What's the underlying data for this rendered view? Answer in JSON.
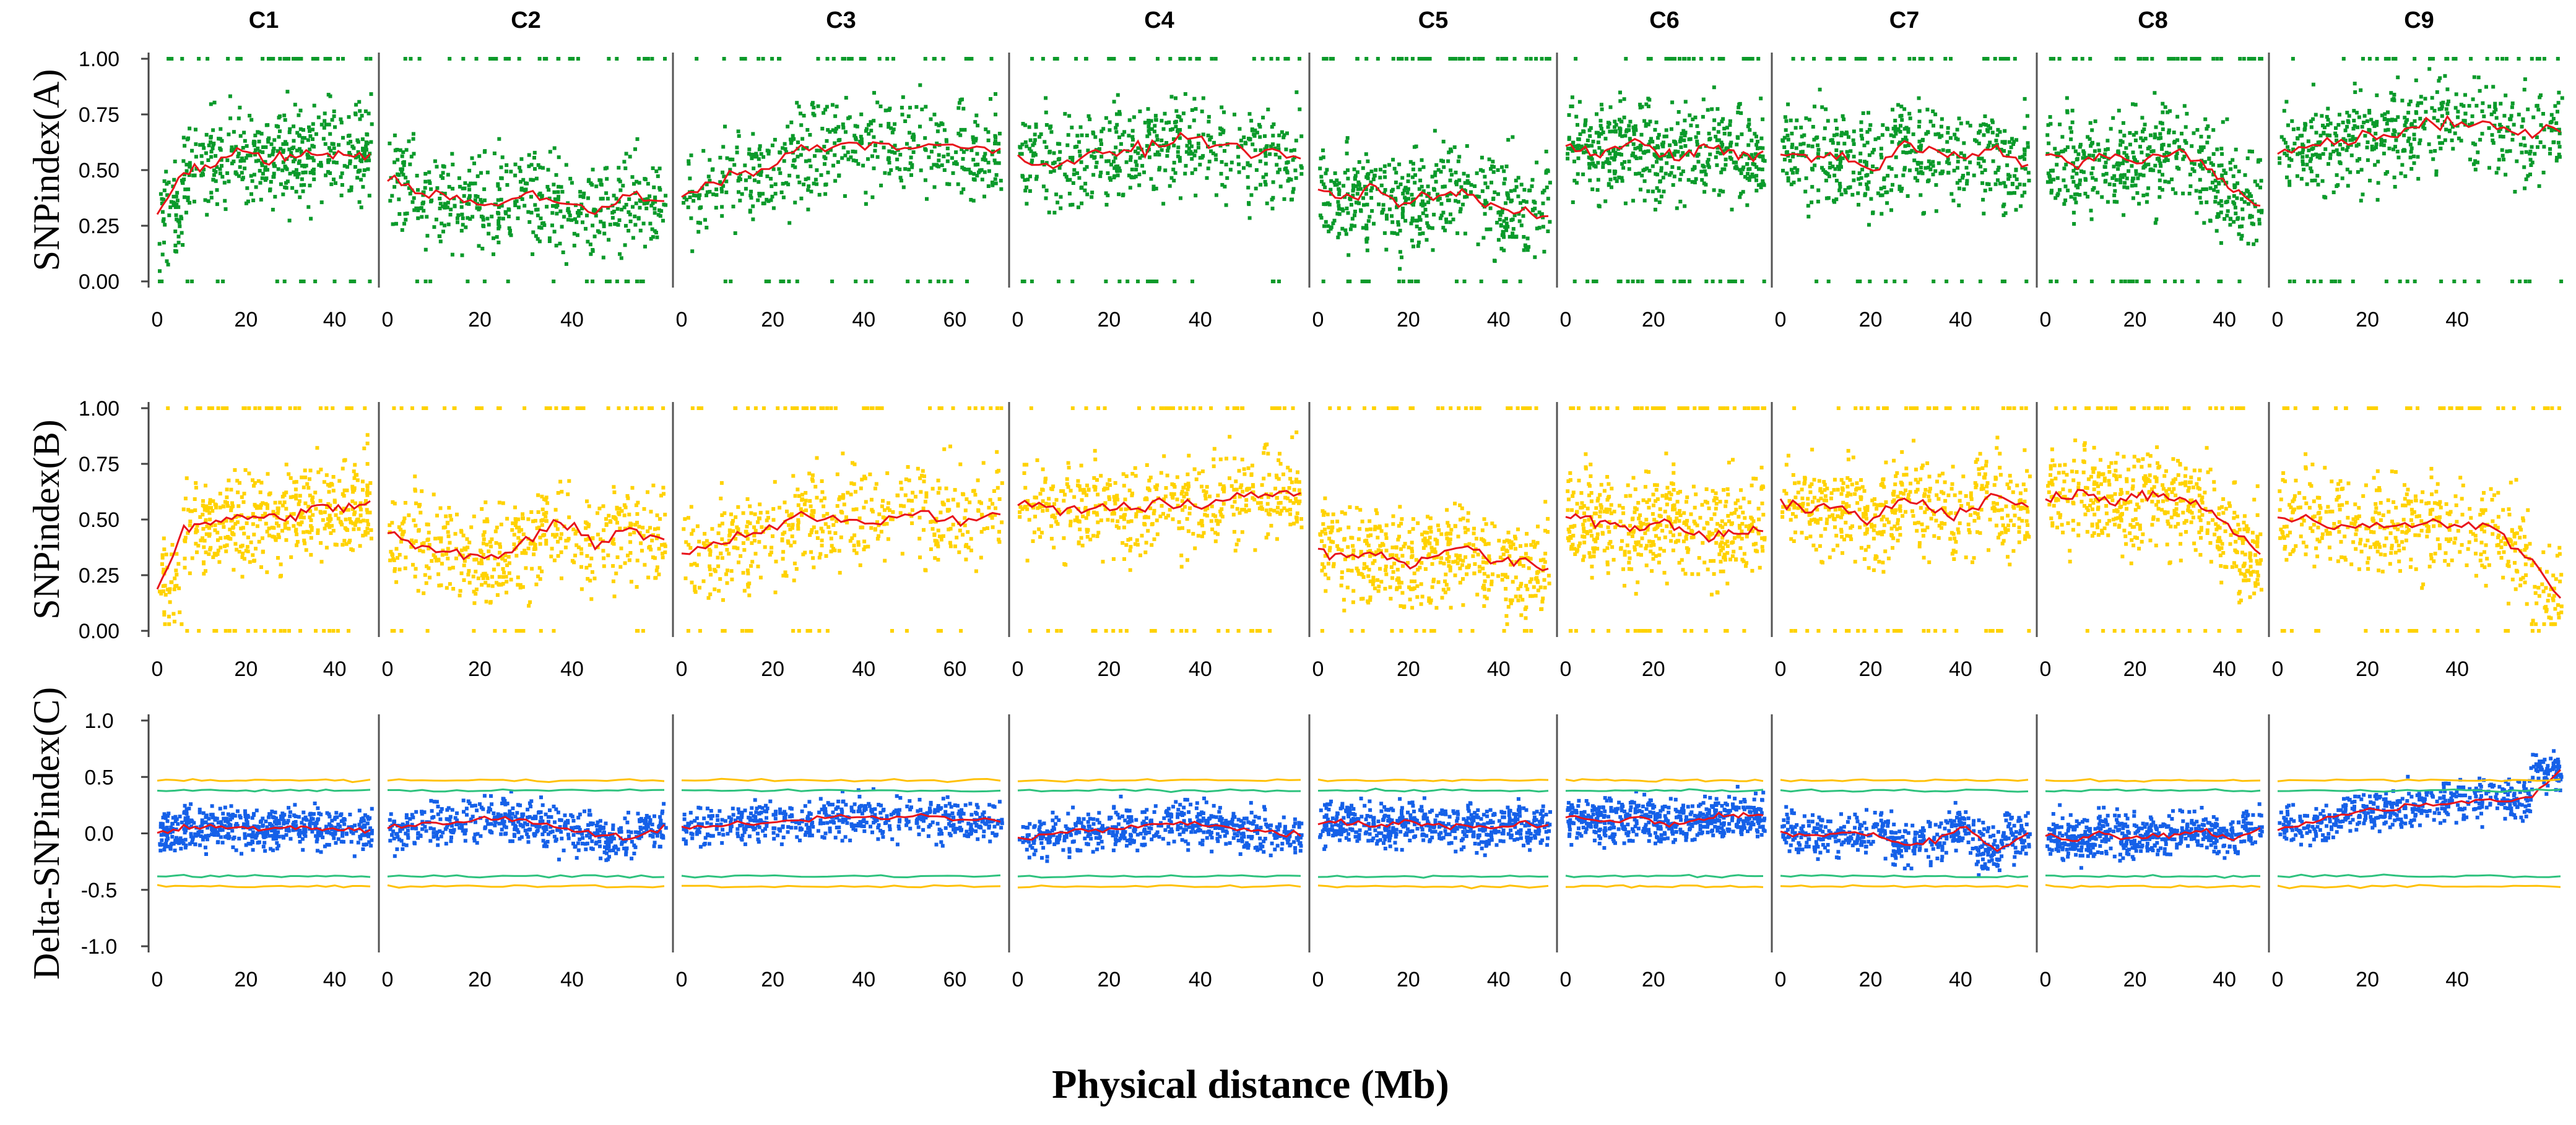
{
  "chart_data": {
    "type": "scatter",
    "xlabel": "Physical distance (Mb)",
    "chromosomes": [
      {
        "name": "C1",
        "length": 48,
        "ticks": [
          0,
          20,
          40
        ]
      },
      {
        "name": "C2",
        "length": 60,
        "ticks": [
          0,
          20,
          40
        ]
      },
      {
        "name": "C3",
        "length": 70,
        "ticks": [
          0,
          20,
          40,
          60
        ]
      },
      {
        "name": "C4",
        "length": 62,
        "ticks": [
          0,
          20,
          40
        ]
      },
      {
        "name": "C5",
        "length": 51,
        "ticks": [
          0,
          20,
          40
        ]
      },
      {
        "name": "C6",
        "length": 45,
        "ticks": [
          0,
          20
        ]
      },
      {
        "name": "C7",
        "length": 55,
        "ticks": [
          0,
          20,
          40
        ]
      },
      {
        "name": "C8",
        "length": 48,
        "ticks": [
          0,
          20,
          40
        ]
      },
      {
        "name": "C9",
        "length": 63,
        "ticks": [
          0,
          20,
          40
        ]
      }
    ],
    "panels": [
      {
        "id": "A",
        "ylabel": "SNPindex(A)",
        "ylim": [
          0,
          1
        ],
        "yticks": [
          "0.00",
          "0.25",
          "0.50",
          "0.75",
          "1.00"
        ],
        "point_color": "#0a9a2a",
        "line_color": "#e8141c",
        "trend": [
          [
            0.3,
            0.5,
            0.52,
            0.58,
            0.55,
            0.56,
            0.57,
            0.58,
            0.57
          ],
          [
            0.45,
            0.4,
            0.38,
            0.34,
            0.4,
            0.36,
            0.3,
            0.38,
            0.35
          ],
          [
            0.4,
            0.46,
            0.5,
            0.6,
            0.62,
            0.62,
            0.61,
            0.6,
            0.58
          ],
          [
            0.55,
            0.52,
            0.56,
            0.58,
            0.62,
            0.65,
            0.6,
            0.58,
            0.55
          ],
          [
            0.4,
            0.38,
            0.42,
            0.35,
            0.38,
            0.4,
            0.34,
            0.32,
            0.3
          ],
          [
            0.62,
            0.58,
            0.6,
            0.64,
            0.55,
            0.58,
            0.6,
            0.58,
            0.56
          ],
          [
            0.58,
            0.55,
            0.56,
            0.5,
            0.62,
            0.58,
            0.55,
            0.6,
            0.52
          ],
          [
            0.55,
            0.52,
            0.56,
            0.54,
            0.55,
            0.58,
            0.52,
            0.4,
            0.35
          ],
          [
            0.6,
            0.62,
            0.64,
            0.66,
            0.7,
            0.72,
            0.7,
            0.66,
            0.68
          ]
        ]
      },
      {
        "id": "B",
        "ylabel": "SNPindex(B)",
        "ylim": [
          0,
          1
        ],
        "yticks": [
          "0.00",
          "0.25",
          "0.50",
          "0.75",
          "1.00"
        ],
        "point_color": "#ffd200",
        "line_color": "#e8141c",
        "trend": [
          [
            0.2,
            0.45,
            0.48,
            0.52,
            0.5,
            0.52,
            0.55,
            0.55,
            0.58
          ],
          [
            0.42,
            0.38,
            0.34,
            0.32,
            0.4,
            0.5,
            0.4,
            0.45,
            0.42
          ],
          [
            0.35,
            0.4,
            0.45,
            0.52,
            0.5,
            0.5,
            0.52,
            0.5,
            0.52
          ],
          [
            0.58,
            0.54,
            0.56,
            0.55,
            0.58,
            0.56,
            0.6,
            0.62,
            0.63
          ],
          [
            0.38,
            0.32,
            0.36,
            0.3,
            0.34,
            0.38,
            0.32,
            0.3,
            0.28
          ],
          [
            0.52,
            0.5,
            0.48,
            0.46,
            0.5,
            0.44,
            0.42,
            0.44,
            0.45
          ],
          [
            0.58,
            0.55,
            0.56,
            0.5,
            0.6,
            0.55,
            0.52,
            0.62,
            0.55
          ],
          [
            0.6,
            0.62,
            0.6,
            0.58,
            0.62,
            0.58,
            0.55,
            0.45,
            0.35
          ],
          [
            0.52,
            0.5,
            0.48,
            0.46,
            0.48,
            0.48,
            0.46,
            0.35,
            0.15
          ]
        ]
      },
      {
        "id": "C",
        "ylabel": "Delta-SNPindex(C)",
        "ylim": [
          -1,
          1
        ],
        "yticks": [
          "-1.0",
          "-0.5",
          "0.0",
          "0.5",
          "1.0"
        ],
        "point_color": "#1560e8",
        "line_color": "#e8141c",
        "threshold_95_color": "#2ec27e",
        "threshold_99_color": "#ffc107",
        "threshold_95": 0.38,
        "threshold_99": 0.47,
        "trend": [
          [
            0.0,
            0.05,
            0.06,
            0.05,
            0.05,
            0.06,
            0.05,
            0.04,
            0.02
          ],
          [
            0.05,
            0.1,
            0.08,
            0.15,
            0.1,
            0.05,
            0.0,
            -0.05,
            0.05
          ],
          [
            0.05,
            0.08,
            0.1,
            0.12,
            0.15,
            0.14,
            0.16,
            0.12,
            0.1
          ],
          [
            -0.05,
            0.0,
            0.02,
            0.05,
            0.08,
            0.1,
            0.06,
            0.02,
            -0.02
          ],
          [
            0.08,
            0.1,
            0.05,
            0.12,
            0.06,
            0.08,
            0.05,
            0.1,
            0.06
          ],
          [
            0.15,
            0.12,
            0.1,
            0.14,
            0.08,
            0.1,
            0.15,
            0.16,
            0.15
          ],
          [
            0.0,
            -0.02,
            0.0,
            0.0,
            -0.1,
            -0.05,
            0.05,
            -0.15,
            0.0
          ],
          [
            -0.02,
            -0.05,
            0.0,
            -0.03,
            -0.02,
            0.0,
            0.02,
            -0.05,
            0.05
          ],
          [
            0.05,
            0.1,
            0.18,
            0.22,
            0.25,
            0.28,
            0.3,
            0.3,
            0.55
          ]
        ]
      }
    ]
  }
}
